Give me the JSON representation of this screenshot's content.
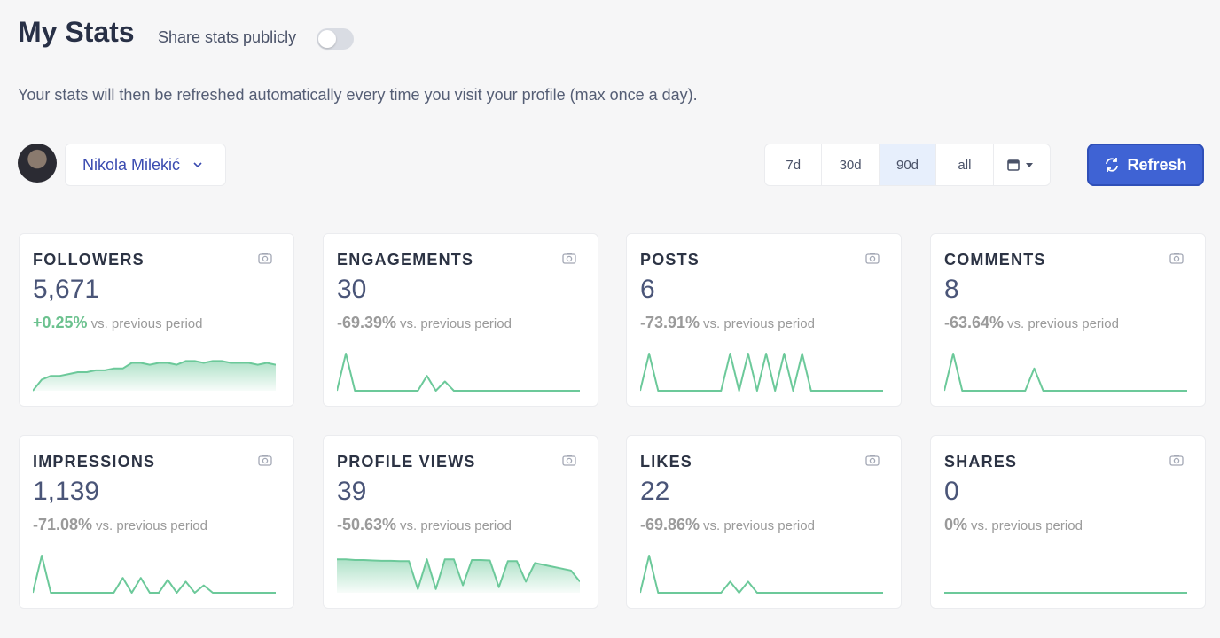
{
  "header": {
    "title": "My Stats",
    "share_label": "Share stats publicly",
    "share_enabled": false,
    "description": "Your stats will then be refreshed automatically every time you visit your profile (max once a day)."
  },
  "toolbar": {
    "profile_name": "Nikola Milekić",
    "ranges": [
      "7d",
      "30d",
      "90d",
      "all"
    ],
    "selected_range": 2,
    "refresh_label": "Refresh"
  },
  "comparison_label": "vs. previous period",
  "cards": [
    {
      "label": "FOLLOWERS",
      "value": "5,671",
      "change": "+0.25%",
      "trend": "up",
      "style": "area",
      "sparkline": [
        0,
        0.3,
        0.4,
        0.4,
        0.45,
        0.5,
        0.5,
        0.55,
        0.55,
        0.6,
        0.6,
        0.75,
        0.75,
        0.7,
        0.75,
        0.75,
        0.7,
        0.8,
        0.8,
        0.75,
        0.8,
        0.8,
        0.75,
        0.75,
        0.75,
        0.7,
        0.75,
        0.7
      ]
    },
    {
      "label": "ENGAGEMENTS",
      "value": "30",
      "change": "-69.39%",
      "trend": "down",
      "style": "line",
      "sparkline": [
        0,
        1,
        0,
        0,
        0,
        0,
        0,
        0,
        0,
        0,
        0.4,
        0,
        0.25,
        0,
        0,
        0,
        0,
        0,
        0,
        0,
        0,
        0,
        0,
        0,
        0,
        0,
        0,
        0
      ]
    },
    {
      "label": "POSTS",
      "value": "6",
      "change": "-73.91%",
      "trend": "down",
      "style": "line",
      "sparkline": [
        0,
        1,
        0,
        0,
        0,
        0,
        0,
        0,
        0,
        0,
        1,
        0,
        1,
        0,
        1,
        0,
        1,
        0,
        1,
        0,
        0,
        0,
        0,
        0,
        0,
        0,
        0,
        0
      ]
    },
    {
      "label": "COMMENTS",
      "value": "8",
      "change": "-63.64%",
      "trend": "down",
      "style": "line",
      "sparkline": [
        0,
        1,
        0,
        0,
        0,
        0,
        0,
        0,
        0,
        0,
        0.6,
        0,
        0,
        0,
        0,
        0,
        0,
        0,
        0,
        0,
        0,
        0,
        0,
        0,
        0,
        0,
        0,
        0
      ]
    },
    {
      "label": "IMPRESSIONS",
      "value": "1,139",
      "change": "-71.08%",
      "trend": "down",
      "style": "line",
      "sparkline": [
        0,
        1,
        0,
        0,
        0,
        0,
        0,
        0,
        0,
        0,
        0.4,
        0,
        0.4,
        0,
        0,
        0.35,
        0,
        0.3,
        0,
        0.2,
        0,
        0,
        0,
        0,
        0,
        0,
        0,
        0
      ]
    },
    {
      "label": "PROFILE VIEWS",
      "value": "39",
      "change": "-50.63%",
      "trend": "down",
      "style": "area",
      "sparkline": [
        0.9,
        0.9,
        0.88,
        0.88,
        0.87,
        0.86,
        0.86,
        0.85,
        0.85,
        0.1,
        0.9,
        0.1,
        0.9,
        0.9,
        0.2,
        0.88,
        0.88,
        0.87,
        0.15,
        0.85,
        0.85,
        0.3,
        0.8,
        0.75,
        0.7,
        0.65,
        0.6,
        0.3
      ]
    },
    {
      "label": "LIKES",
      "value": "22",
      "change": "-69.86%",
      "trend": "down",
      "style": "line",
      "sparkline": [
        0,
        1,
        0,
        0,
        0,
        0,
        0,
        0,
        0,
        0,
        0.3,
        0,
        0.3,
        0,
        0,
        0,
        0,
        0,
        0,
        0,
        0,
        0,
        0,
        0,
        0,
        0,
        0,
        0
      ]
    },
    {
      "label": "SHARES",
      "value": "0",
      "change": "0%",
      "trend": "flat",
      "style": "line",
      "sparkline": [
        0,
        0,
        0,
        0,
        0,
        0,
        0,
        0,
        0,
        0,
        0,
        0,
        0,
        0,
        0,
        0,
        0,
        0,
        0,
        0,
        0,
        0,
        0,
        0,
        0,
        0,
        0,
        0
      ]
    }
  ]
}
